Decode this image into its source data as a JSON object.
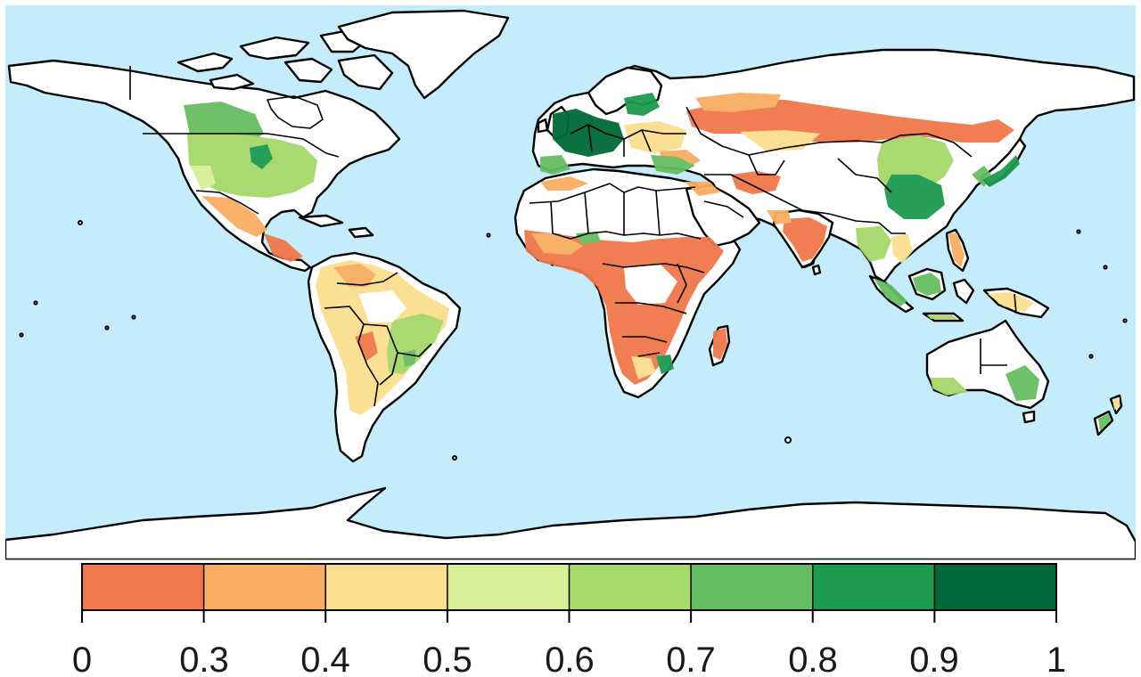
{
  "map": {
    "ocean_color": "#c4ecfb",
    "land_color": "#ffffff",
    "outline_color": "#000000",
    "projection": "equirectangular",
    "value_range": [
      0,
      1
    ]
  },
  "legend": {
    "bins": [
      {
        "from": 0.0,
        "to": 0.3,
        "color": "#f1784a"
      },
      {
        "from": 0.3,
        "to": 0.4,
        "color": "#f9ad62"
      },
      {
        "from": 0.4,
        "to": 0.5,
        "color": "#fbdf8e"
      },
      {
        "from": 0.5,
        "to": 0.6,
        "color": "#d9ef96"
      },
      {
        "from": 0.6,
        "to": 0.7,
        "color": "#a6d86a"
      },
      {
        "from": 0.7,
        "to": 0.8,
        "color": "#67bd62"
      },
      {
        "from": 0.8,
        "to": 0.9,
        "color": "#1d9a50"
      },
      {
        "from": 0.9,
        "to": 1.0,
        "color": "#006937"
      }
    ],
    "tick_labels": [
      "0",
      "0.3",
      "0.4",
      "0.5",
      "0.6",
      "0.7",
      "0.8",
      "0.9",
      "1"
    ]
  }
}
